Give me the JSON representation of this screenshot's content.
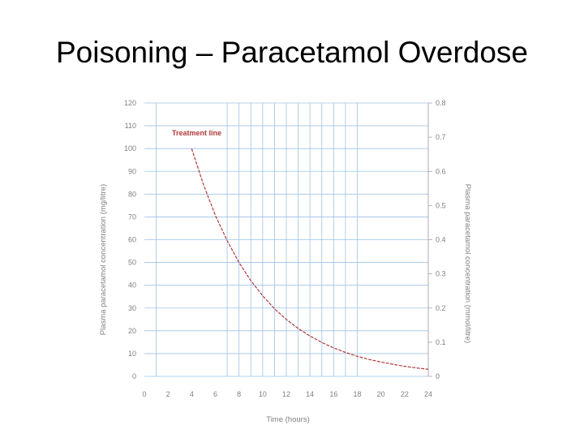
{
  "slide": {
    "title": "Poisoning – Paracetamol Overdose"
  },
  "chart_data": {
    "type": "line",
    "xlabel": "Time (hours)",
    "ylabel_left": "Plasma paracetamol concentration (mg/litre)",
    "ylabel_right": "Plasma paracetamol concentration (mmol/litre)",
    "xlim": [
      0,
      24
    ],
    "ylim_left": [
      0,
      120
    ],
    "ylim_right": [
      0,
      0.8
    ],
    "x_ticks": [
      "0",
      "2",
      "4",
      "6",
      "8",
      "10",
      "12",
      "14",
      "16",
      "18",
      "20",
      "22",
      "24"
    ],
    "y_ticks_left": [
      "0",
      "10",
      "20",
      "30",
      "40",
      "50",
      "60",
      "70",
      "80",
      "90",
      "100",
      "110",
      "120"
    ],
    "y_ticks_right": [
      "0",
      "0.1",
      "0.2",
      "0.3",
      "0.4",
      "0.5",
      "0.6",
      "0.7",
      "0.8"
    ],
    "vertical_gridlines_hours": [
      1,
      7,
      8,
      9,
      10,
      11,
      12,
      13,
      14,
      15,
      16,
      17,
      18,
      24
    ],
    "grid": true,
    "annotation": "Treatment line",
    "series": [
      {
        "name": "Treatment line",
        "color": "#b03a3a",
        "x": [
          4,
          5,
          6,
          7,
          8,
          9,
          10,
          11,
          12,
          13,
          14,
          15,
          16,
          17,
          18,
          19,
          20,
          21,
          22,
          23,
          24
        ],
        "y": [
          100,
          84.1,
          70.7,
          59.5,
          50,
          42.0,
          35.4,
          29.7,
          25,
          21.0,
          17.7,
          14.9,
          12.5,
          10.5,
          8.8,
          7.4,
          6.3,
          5.3,
          4.4,
          3.7,
          3.1
        ]
      }
    ]
  }
}
